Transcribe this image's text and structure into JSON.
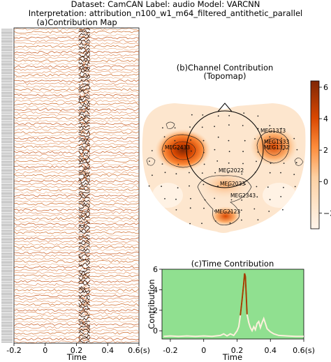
{
  "header": {
    "line1": "Dataset: CamCAN   Label: audio   Model: VARCNN",
    "line2": "Interpretation: attribution_n100_w1_m64_filtered_antithetic_parallel"
  },
  "contribution_map": {
    "title": "(a)Contribution Map",
    "xlabel": "Time",
    "xticks": [
      "-0.2",
      "0",
      "0.2",
      "0.4",
      "0.6(s)"
    ],
    "channel_count": 204
  },
  "topomap": {
    "title_line1": "(b)Channel Contribution",
    "title_line2": "(Topomap)",
    "sensor_labels": [
      "MEG1313",
      "MEG2433",
      "MEG1333",
      "MEG1332",
      "MEG2022",
      "MEG2033",
      "MEG2343",
      "MEG2123"
    ],
    "colorbar_ticks": [
      "6",
      "4",
      "2",
      "0",
      "−2"
    ],
    "colormap": [
      "#fff5eb",
      "#fdd0a2",
      "#fd8d3c",
      "#d94801",
      "#7f2704"
    ]
  },
  "chart_data": [
    {
      "type": "heatmap",
      "title": "(a)Contribution Map",
      "xlabel": "Time",
      "xlim": [
        -0.2,
        0.6
      ],
      "x_unit": "s",
      "peak_time_s": 0.25
    },
    {
      "type": "heatmap",
      "title": "(b)Channel Contribution (Topomap)",
      "color_range": [
        -3,
        6.4
      ],
      "hotspots": [
        {
          "label": "MEG2433",
          "value": 6.0
        },
        {
          "label": "MEG1333",
          "value": 5.2
        },
        {
          "label": "MEG1332",
          "value": 4.6
        },
        {
          "label": "MEG1313",
          "value": 3.0
        },
        {
          "label": "MEG2022",
          "value": 1.5
        },
        {
          "label": "MEG2033",
          "value": 1.3
        },
        {
          "label": "MEG2343",
          "value": 1.2
        },
        {
          "label": "MEG2123",
          "value": 2.0
        }
      ]
    },
    {
      "type": "line",
      "title": "(c)Time Contribution",
      "xlabel": "Time",
      "ylabel": "Contribution",
      "xlim": [
        -0.25,
        0.6
      ],
      "ylim": [
        -0.8,
        6
      ],
      "xticks": [
        "-0.2",
        "0",
        "0.2",
        "0.4",
        "0.6(s)"
      ],
      "yticks": [
        0,
        2,
        4,
        6
      ],
      "background": "#90e090",
      "x": [
        -0.24,
        -0.2,
        -0.15,
        -0.1,
        -0.05,
        0.0,
        0.05,
        0.1,
        0.12,
        0.14,
        0.16,
        0.18,
        0.2,
        0.21,
        0.22,
        0.23,
        0.24,
        0.245,
        0.25,
        0.255,
        0.26,
        0.27,
        0.28,
        0.29,
        0.3,
        0.31,
        0.32,
        0.33,
        0.34,
        0.35,
        0.36,
        0.37,
        0.38,
        0.4,
        0.42,
        0.45,
        0.5,
        0.55,
        0.6
      ],
      "y": [
        -0.55,
        -0.5,
        -0.55,
        -0.5,
        -0.55,
        -0.5,
        -0.55,
        -0.45,
        -0.3,
        -0.5,
        -0.3,
        -0.45,
        0.0,
        0.4,
        1.5,
        3.0,
        4.6,
        5.6,
        5.3,
        3.5,
        1.6,
        0.8,
        0.3,
        0.0,
        0.4,
        0.1,
        0.7,
        0.9,
        0.3,
        0.8,
        1.2,
        0.7,
        0.2,
        -0.1,
        -0.3,
        -0.45,
        -0.5,
        -0.55,
        -0.55
      ]
    }
  ]
}
